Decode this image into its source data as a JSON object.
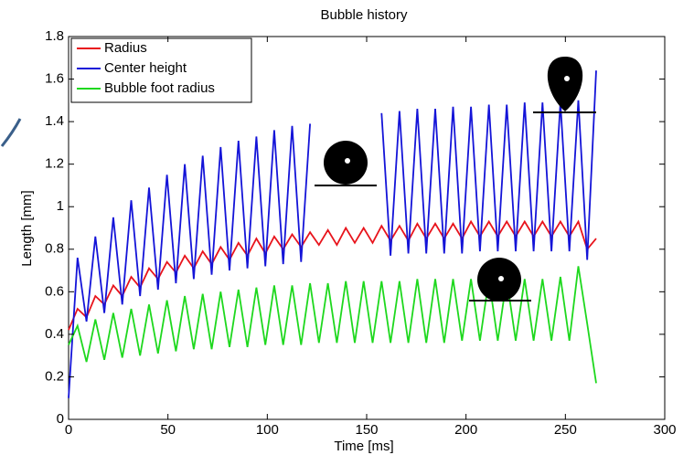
{
  "chart_data": {
    "type": "line",
    "title": "Bubble history",
    "x_label": "Time [ms]",
    "y_label": "Length [mm]",
    "x": [
      0,
      4.5,
      9,
      13.5,
      18,
      22.5,
      27,
      31.5,
      36,
      40.5,
      45,
      49.5,
      54,
      58.5,
      63,
      67.5,
      72,
      76.5,
      81,
      85.5,
      90,
      94.5,
      99,
      103.5,
      108,
      112.5,
      117,
      121.5,
      126,
      130.5,
      135,
      139.5,
      144,
      148.5,
      153,
      157.5,
      162,
      166.5,
      171,
      175.5,
      180,
      184.5,
      189,
      193.5,
      198,
      202.5,
      207,
      211.5,
      216,
      220.5,
      225,
      229.5,
      234,
      238.5,
      243,
      247.5,
      252,
      256.5,
      261,
      265.5
    ],
    "series": [
      {
        "name": "Radius",
        "color": "#e8141c",
        "values": [
          0.42,
          0.52,
          0.48,
          0.58,
          0.54,
          0.63,
          0.58,
          0.67,
          0.62,
          0.71,
          0.66,
          0.74,
          0.69,
          0.77,
          0.71,
          0.79,
          0.73,
          0.81,
          0.75,
          0.83,
          0.77,
          0.85,
          0.78,
          0.86,
          0.8,
          0.87,
          0.81,
          0.88,
          0.82,
          0.89,
          0.82,
          0.9,
          0.83,
          0.9,
          0.83,
          0.91,
          0.84,
          0.91,
          0.84,
          0.92,
          0.85,
          0.92,
          0.85,
          0.92,
          0.85,
          0.93,
          0.86,
          0.93,
          0.86,
          0.93,
          0.86,
          0.93,
          0.86,
          0.93,
          0.86,
          0.93,
          0.86,
          0.93,
          0.8,
          0.85
        ]
      },
      {
        "name": "Center height",
        "color": "#1414d8",
        "values": [
          0.1,
          0.76,
          0.46,
          0.86,
          0.5,
          0.95,
          0.54,
          1.03,
          0.58,
          1.09,
          0.61,
          1.15,
          0.64,
          1.2,
          0.66,
          1.24,
          0.68,
          1.28,
          0.7,
          1.31,
          0.71,
          1.33,
          0.72,
          1.36,
          0.73,
          1.38,
          0.74,
          1.39,
          null,
          null,
          null,
          null,
          null,
          null,
          null,
          1.44,
          0.77,
          1.45,
          0.78,
          1.46,
          0.78,
          1.46,
          0.78,
          1.47,
          0.78,
          1.47,
          0.79,
          1.48,
          0.79,
          1.48,
          0.79,
          1.49,
          0.79,
          1.49,
          0.79,
          1.49,
          0.79,
          1.5,
          0.75,
          1.64
        ]
      },
      {
        "name": "Bubble foot radius",
        "color": "#1ed81e",
        "values": [
          0.35,
          0.44,
          0.27,
          0.47,
          0.28,
          0.5,
          0.29,
          0.52,
          0.3,
          0.54,
          0.31,
          0.56,
          0.32,
          0.58,
          0.33,
          0.59,
          0.33,
          0.6,
          0.34,
          0.61,
          0.34,
          0.62,
          0.35,
          0.63,
          0.35,
          0.63,
          0.35,
          0.64,
          0.36,
          0.64,
          0.36,
          0.65,
          0.36,
          0.65,
          0.36,
          0.65,
          0.36,
          0.65,
          0.36,
          0.66,
          0.36,
          0.66,
          0.36,
          0.66,
          0.37,
          0.66,
          0.37,
          0.66,
          0.37,
          0.66,
          0.37,
          0.66,
          0.37,
          0.66,
          0.37,
          0.67,
          0.37,
          0.72,
          0.45,
          0.17
        ]
      }
    ],
    "xlim": [
      0,
      300
    ],
    "xticks": [
      0,
      50,
      100,
      150,
      200,
      250,
      300
    ],
    "ylim": [
      0,
      1.8
    ],
    "yticks": [
      0,
      0.2,
      0.4,
      0.6,
      0.8,
      1,
      1.2,
      1.4,
      1.6,
      1.8
    ],
    "grid": false,
    "legend": "upper left"
  }
}
